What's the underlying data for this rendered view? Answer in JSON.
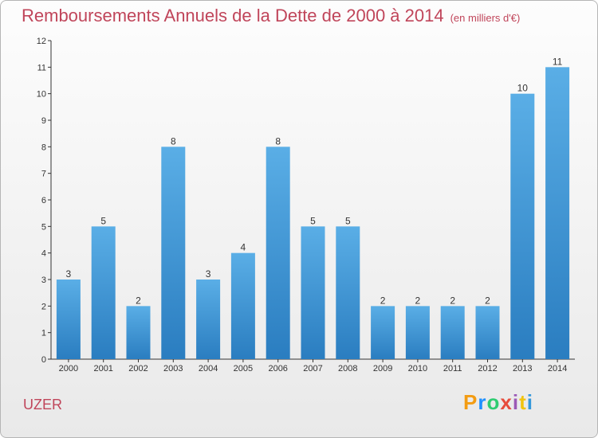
{
  "header": {
    "title": "Remboursements Annuels de la Dette de 2000 à 2014",
    "subtitle": "(en milliers d'€)"
  },
  "footer": {
    "commune": "UZER",
    "logo_text": "Proxiti",
    "logo_colors": [
      "#f39c12",
      "#1e90ff",
      "#2ecc71",
      "#e74c3c",
      "#9b59b6",
      "#f1c40f",
      "#3498db"
    ]
  },
  "chart_data": {
    "type": "bar",
    "title": "Remboursements Annuels de la Dette de 2000 à 2014",
    "subtitle": "(en milliers d'€)",
    "xlabel": "",
    "ylabel": "",
    "categories": [
      "2000",
      "2001",
      "2002",
      "2003",
      "2004",
      "2005",
      "2006",
      "2007",
      "2008",
      "2009",
      "2010",
      "2011",
      "2012",
      "2013",
      "2014"
    ],
    "values": [
      3,
      5,
      2,
      8,
      3,
      4,
      8,
      5,
      5,
      2,
      2,
      2,
      2,
      10,
      11
    ],
    "ylim": [
      0,
      12
    ],
    "yticks": [
      0,
      1,
      2,
      3,
      4,
      5,
      6,
      7,
      8,
      9,
      10,
      11,
      12
    ],
    "grid": false,
    "bar_color_light": "#5aaee6",
    "bar_color_dark": "#2a7dc0",
    "axis_color": "#333333"
  }
}
